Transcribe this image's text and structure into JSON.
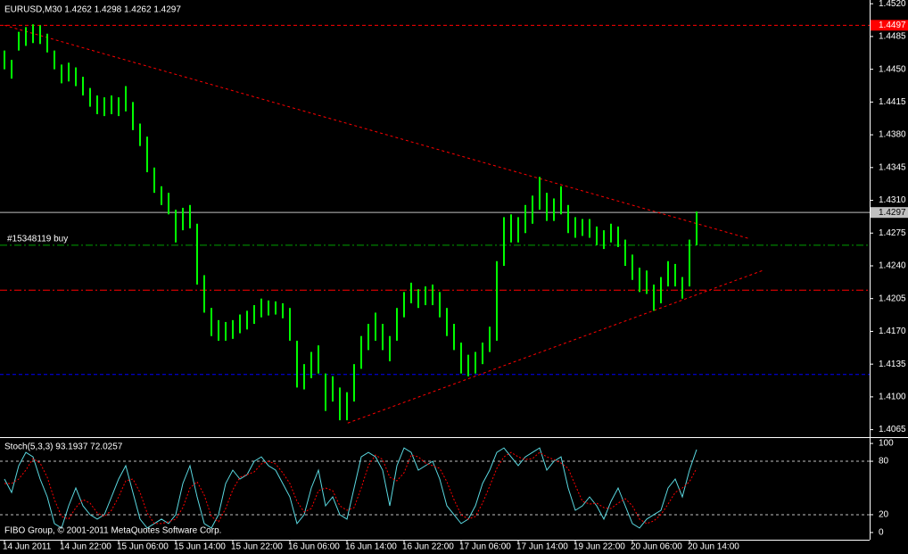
{
  "chart_data": [
    {
      "type": "range-bar",
      "title": "EURUSD,M30  1.4262 1.4298 1.4262 1.4297",
      "color": "#00ff00",
      "high": [
        1.447,
        1.446,
        1.449,
        1.4495,
        1.4498,
        1.4497,
        1.4488,
        1.447,
        1.4455,
        1.4457,
        1.4452,
        1.4442,
        1.443,
        1.4422,
        1.442,
        1.4422,
        1.442,
        1.4432,
        1.4415,
        1.4392,
        1.4378,
        1.4345,
        1.4325,
        1.4318,
        1.43,
        1.4302,
        1.4305,
        1.4285,
        1.423,
        1.4195,
        1.4182,
        1.418,
        1.4182,
        1.4188,
        1.4192,
        1.4198,
        1.4205,
        1.4203,
        1.4202,
        1.42,
        1.4195,
        1.416,
        1.4135,
        1.4148,
        1.4155,
        1.4125,
        1.4122,
        1.411,
        1.4105,
        1.4135,
        1.4165,
        1.4178,
        1.419,
        1.4178,
        1.4165,
        1.4195,
        1.4212,
        1.4222,
        1.4215,
        1.4218,
        1.422,
        1.4212,
        1.4195,
        1.4178,
        1.4158,
        1.4145,
        1.4148,
        1.4158,
        1.4175,
        1.4245,
        1.4292,
        1.4295,
        1.4292,
        1.4305,
        1.4315,
        1.4335,
        1.4318,
        1.4312,
        1.4325,
        1.4305,
        1.4292,
        1.429,
        1.429,
        1.4282,
        1.4278,
        1.4285,
        1.4282,
        1.4268,
        1.4252,
        1.4238,
        1.4235,
        1.422,
        1.4228,
        1.4245,
        1.4242,
        1.4228,
        1.4268,
        1.4298
      ],
      "low": [
        1.445,
        1.444,
        1.447,
        1.4475,
        1.4478,
        1.4477,
        1.4468,
        1.445,
        1.4435,
        1.4437,
        1.4432,
        1.4422,
        1.441,
        1.4402,
        1.44,
        1.4402,
        1.44,
        1.4405,
        1.4385,
        1.4368,
        1.434,
        1.4318,
        1.4305,
        1.4295,
        1.4265,
        1.4278,
        1.428,
        1.422,
        1.419,
        1.4165,
        1.416,
        1.416,
        1.4162,
        1.4168,
        1.4172,
        1.4178,
        1.4185,
        1.4187,
        1.4188,
        1.4184,
        1.416,
        1.411,
        1.4108,
        1.412,
        1.4125,
        1.4085,
        1.4095,
        1.4075,
        1.4075,
        1.4095,
        1.413,
        1.415,
        1.416,
        1.415,
        1.4138,
        1.416,
        1.4185,
        1.42,
        1.4195,
        1.4198,
        1.4198,
        1.4185,
        1.4165,
        1.415,
        1.4125,
        1.4122,
        1.4125,
        1.4135,
        1.4148,
        1.416,
        1.424,
        1.4265,
        1.4265,
        1.4275,
        1.4285,
        1.43,
        1.4288,
        1.4288,
        1.4295,
        1.4275,
        1.427,
        1.4272,
        1.427,
        1.4262,
        1.4258,
        1.4265,
        1.426,
        1.424,
        1.4225,
        1.4212,
        1.421,
        1.4192,
        1.42,
        1.4218,
        1.4218,
        1.4205,
        1.4218,
        1.4262
      ],
      "ylim": [
        1.4057,
        1.4524
      ],
      "yticks": [
        {
          "value": 1.452,
          "label": "1.4520"
        },
        {
          "value": 1.4485,
          "label": "1.4485"
        },
        {
          "value": 1.445,
          "label": "1.4450"
        },
        {
          "value": 1.4415,
          "label": "1.4415"
        },
        {
          "value": 1.438,
          "label": "1.4380"
        },
        {
          "value": 1.4345,
          "label": "1.4345"
        },
        {
          "value": 1.431,
          "label": "1.4310"
        },
        {
          "value": 1.4275,
          "label": "1.4275"
        },
        {
          "value": 1.424,
          "label": "1.4240"
        },
        {
          "value": 1.4205,
          "label": "1.4205"
        },
        {
          "value": 1.417,
          "label": "1.4170"
        },
        {
          "value": 1.4135,
          "label": "1.4135"
        },
        {
          "value": 1.41,
          "label": "1.4100"
        },
        {
          "value": 1.4065,
          "label": "1.4065"
        }
      ],
      "xlim": [
        -0.625,
        121.25
      ],
      "levels": [
        {
          "value": 1.4497,
          "color": "#ff0000",
          "style": "dash",
          "label": "1.4497"
        },
        {
          "value": 1.4297,
          "color": "#c0c0c0",
          "style": "solid",
          "label": "1.4297"
        },
        {
          "value": 1.4262,
          "color": "#00a000",
          "style": "dashdot",
          "text": "#15348119 buy"
        },
        {
          "value": 1.4214,
          "color": "#ff0000",
          "style": "dashdot"
        },
        {
          "value": 1.4124,
          "color": "#0000ff",
          "style": "dash"
        }
      ],
      "trendlines": [
        {
          "x": [
            0,
            104.4
          ],
          "y": [
            1.4497,
            1.4269
          ],
          "color": "#ff0000"
        },
        {
          "x": [
            48.1,
            106.25
          ],
          "y": [
            1.4072,
            1.4235
          ],
          "color": "#ff0000"
        }
      ]
    },
    {
      "type": "line",
      "title": "Stoch(5,3,3) 93.1937 72.0257",
      "footer": "FIBO Group, © 2001-2011 MetaQuotes Software Corp.",
      "series": [
        {
          "name": "Main",
          "color": "#5ad8e0",
          "style": "solid",
          "values": [
            60,
            45,
            75,
            90,
            85,
            60,
            40,
            10,
            5,
            30,
            50,
            30,
            20,
            15,
            20,
            40,
            60,
            75,
            45,
            15,
            5,
            10,
            15,
            10,
            20,
            55,
            75,
            40,
            10,
            5,
            20,
            55,
            70,
            60,
            65,
            80,
            85,
            75,
            70,
            55,
            40,
            10,
            20,
            50,
            70,
            30,
            40,
            20,
            15,
            50,
            85,
            90,
            85,
            70,
            30,
            75,
            95,
            90,
            70,
            75,
            80,
            60,
            30,
            20,
            10,
            15,
            30,
            55,
            70,
            90,
            95,
            85,
            75,
            85,
            90,
            95,
            70,
            80,
            85,
            50,
            25,
            30,
            40,
            30,
            15,
            35,
            50,
            30,
            10,
            5,
            15,
            20,
            25,
            50,
            60,
            40,
            70,
            93.1937
          ]
        },
        {
          "name": "Signal",
          "color": "#ff0000",
          "style": "dot",
          "values": [
            55,
            55,
            60,
            70,
            83,
            78,
            62,
            37,
            18,
            15,
            28,
            37,
            33,
            22,
            18,
            25,
            40,
            58,
            60,
            45,
            22,
            10,
            10,
            12,
            15,
            28,
            50,
            57,
            42,
            18,
            12,
            27,
            48,
            62,
            65,
            68,
            77,
            80,
            77,
            67,
            55,
            35,
            23,
            27,
            47,
            50,
            47,
            30,
            25,
            28,
            50,
            75,
            87,
            82,
            62,
            58,
            67,
            87,
            85,
            78,
            75,
            72,
            57,
            37,
            20,
            15,
            18,
            33,
            52,
            72,
            85,
            90,
            85,
            82,
            83,
            90,
            85,
            82,
            78,
            72,
            53,
            35,
            32,
            33,
            28,
            27,
            33,
            38,
            30,
            15,
            10,
            13,
            20,
            32,
            45,
            50,
            57,
            72.0257
          ]
        }
      ],
      "ylim": [
        -8.1,
        106.1
      ],
      "yticks": [
        100,
        80,
        20,
        0
      ],
      "levels": [
        80,
        20
      ],
      "xlim": [
        -0.625,
        121.25
      ],
      "xticks": [
        {
          "value": 0,
          "label": "14 Jun 2011"
        },
        {
          "value": 8,
          "label": "14 Jun 22:00"
        },
        {
          "value": 16,
          "label": "15 Jun 06:00"
        },
        {
          "value": 24,
          "label": "15 Jun 14:00"
        },
        {
          "value": 32,
          "label": "15 Jun 22:00"
        },
        {
          "value": 40,
          "label": "16 Jun 06:00"
        },
        {
          "value": 48,
          "label": "16 Jun 14:00"
        },
        {
          "value": 56,
          "label": "16 Jun 22:00"
        },
        {
          "value": 64,
          "label": "17 Jun 06:00"
        },
        {
          "value": 72,
          "label": "17 Jun 14:00"
        },
        {
          "value": 80,
          "label": "19 Jun 22:00"
        },
        {
          "value": 88,
          "label": "20 Jun 06:00"
        },
        {
          "value": 96,
          "label": "20 Jun 14:00"
        }
      ]
    }
  ]
}
